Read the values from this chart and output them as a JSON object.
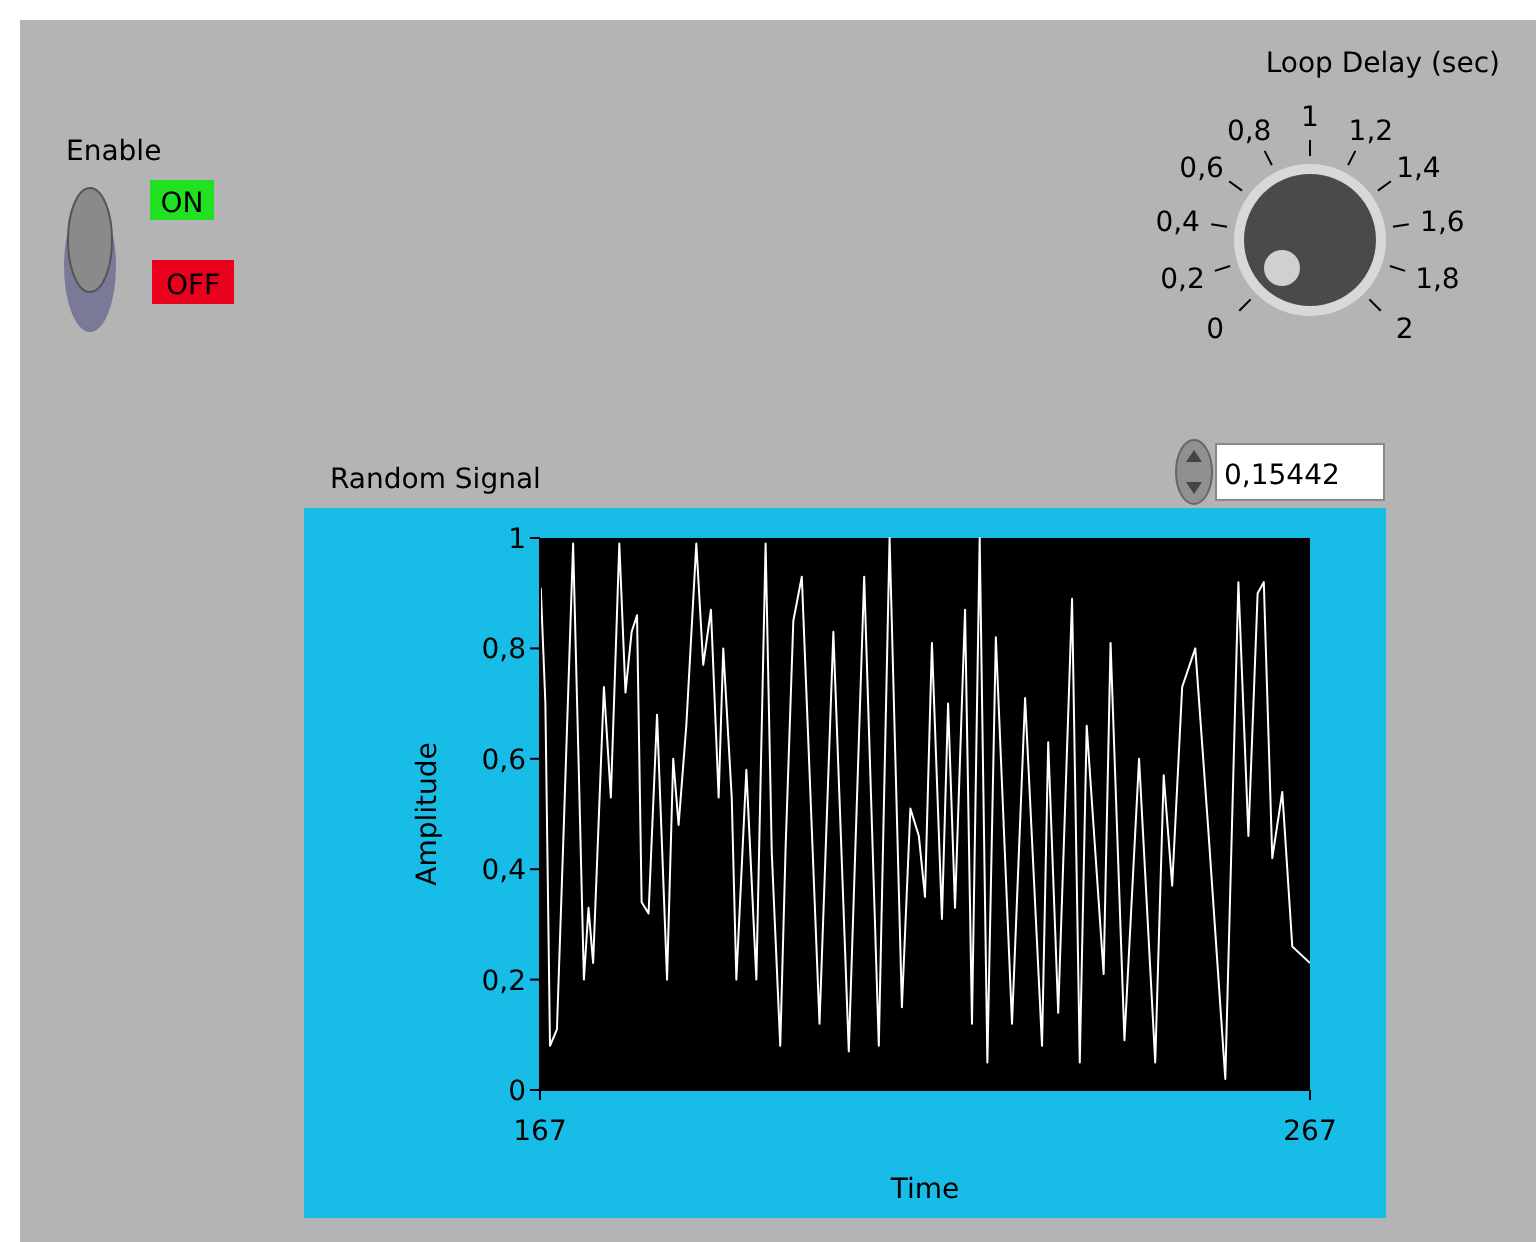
{
  "chart_data": {
    "type": "line",
    "title": "Random Signal",
    "xlabel": "Time",
    "ylabel": "Amplitude",
    "xlim": [
      167,
      267
    ],
    "xticks": [
      167,
      267
    ],
    "ylim": [
      0,
      1
    ],
    "yticks": [
      0,
      {
        "value": 0.2,
        "label": "0,2"
      },
      {
        "value": 0.4,
        "label": "0,4"
      },
      {
        "value": 0.6,
        "label": "0,6"
      },
      {
        "value": 0.8,
        "label": "0,8"
      },
      1
    ],
    "grid": false,
    "marker": "none",
    "line_style": "solid",
    "series": [
      {
        "color": "#ffffff",
        "x": [
          167.1,
          167.7,
          168.3,
          169.2,
          170.0,
          171.3,
          172.0,
          172.7,
          173.3,
          173.9,
          175.3,
          176.2,
          177.3,
          178.1,
          178.9,
          179.6,
          180.2,
          181.1,
          182.2,
          183.5,
          184.3,
          185.0,
          186.0,
          187.3,
          188.2,
          189.2,
          190.2,
          190.8,
          191.9,
          192.5,
          193.8,
          195.1,
          196.3,
          197.1,
          198.2,
          198.9,
          199.9,
          201.0,
          203.3,
          205.1,
          207.1,
          209.1,
          211.0,
          212.4,
          214.0,
          215.1,
          216.2,
          217.0,
          217.9,
          219.2,
          220.0,
          220.9,
          222.2,
          223.1,
          224.1,
          225.1,
          226.2,
          228.3,
          230.0,
          232.2,
          233.0,
          234.3,
          236.1,
          237.1,
          238.0,
          240.2,
          241.1,
          242.9,
          244.8,
          246.9,
          248.0,
          249.1,
          250.4,
          252.1,
          253.8,
          256.0,
          257.7,
          259.0,
          260.2,
          261.0,
          262.1,
          263.4,
          264.7,
          267.0
        ],
        "values": [
          0.91,
          0.7,
          0.08,
          0.11,
          0.44,
          0.99,
          0.6,
          0.2,
          0.33,
          0.23,
          0.73,
          0.53,
          0.99,
          0.72,
          0.83,
          0.86,
          0.34,
          0.32,
          0.68,
          0.2,
          0.6,
          0.48,
          0.66,
          0.99,
          0.77,
          0.87,
          0.53,
          0.8,
          0.53,
          0.2,
          0.58,
          0.2,
          0.99,
          0.43,
          0.08,
          0.44,
          0.85,
          0.93,
          0.12,
          0.83,
          0.07,
          0.93,
          0.08,
          1.0,
          0.15,
          0.51,
          0.46,
          0.35,
          0.81,
          0.31,
          0.7,
          0.33,
          0.87,
          0.12,
          1.0,
          0.05,
          0.82,
          0.12,
          0.71,
          0.08,
          0.63,
          0.14,
          0.89,
          0.05,
          0.66,
          0.21,
          0.81,
          0.09,
          0.6,
          0.05,
          0.57,
          0.37,
          0.73,
          0.8,
          0.47,
          0.02,
          0.92,
          0.46,
          0.9,
          0.92,
          0.42,
          0.54,
          0.26,
          0.23
        ]
      }
    ],
    "annotations": [
      "Enable",
      "ON",
      "OFF",
      "Loop Delay (sec)",
      "0",
      "0,2",
      "0,4",
      "0,6",
      "0,8",
      "1",
      "1,2",
      "1,4",
      "1,6",
      "1,8",
      "2",
      "0,15442"
    ]
  }
}
